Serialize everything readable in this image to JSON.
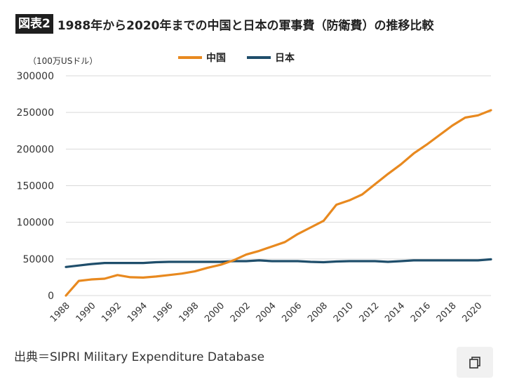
{
  "figure": {
    "label": "図表2",
    "title": "1988年から2020年までの中国と日本の軍事費（防衛費）の推移比較"
  },
  "source": "出典＝SIPRI Military Expenditure Database",
  "icons": {
    "copy": "copy-icon"
  },
  "chart_data": {
    "type": "line",
    "ylabel": "（100万USドル）",
    "ylim": [
      0,
      300000
    ],
    "yticks": [
      0,
      50000,
      100000,
      150000,
      200000,
      250000,
      300000
    ],
    "ytick_labels": [
      "0",
      "50000",
      "100000",
      "150000",
      "200000",
      "250000",
      "300000"
    ],
    "xlim": [
      1988,
      2021
    ],
    "xticks": [
      1988,
      1990,
      1992,
      1994,
      1996,
      1998,
      2000,
      2002,
      2004,
      2006,
      2008,
      2010,
      2012,
      2014,
      2016,
      2018,
      2020
    ],
    "xtick_labels": [
      "1988",
      "1990",
      "1992",
      "1994",
      "1996",
      "1998",
      "2000",
      "2002",
      "2004",
      "2006",
      "2008",
      "2010",
      "2012",
      "2014",
      "2016",
      "2018",
      "2020"
    ],
    "grid": true,
    "legend_position": "top-center",
    "x": [
      1988,
      1989,
      1990,
      1991,
      1992,
      1993,
      1994,
      1995,
      1996,
      1997,
      1998,
      1999,
      2000,
      2001,
      2002,
      2003,
      2004,
      2005,
      2006,
      2007,
      2008,
      2009,
      2010,
      2011,
      2012,
      2013,
      2014,
      2015,
      2016,
      2017,
      2018,
      2019,
      2020,
      2021
    ],
    "series": [
      {
        "name": "中国",
        "color": "#e8891f",
        "values": [
          0,
          20000,
          22000,
          23000,
          28000,
          25000,
          24500,
          26000,
          28000,
          30000,
          33000,
          38000,
          42000,
          48000,
          56000,
          61000,
          67000,
          73000,
          84000,
          93000,
          102000,
          124000,
          130000,
          138000,
          152000,
          166000,
          179000,
          194000,
          206000,
          219000,
          232000,
          243000,
          246000,
          253000
        ]
      },
      {
        "name": "日本",
        "color": "#1f4e6b",
        "values": [
          39000,
          41000,
          43000,
          44500,
          44500,
          44500,
          44500,
          45500,
          46000,
          46000,
          46000,
          46000,
          46000,
          47000,
          47000,
          48000,
          47000,
          47000,
          47000,
          46000,
          45500,
          46500,
          47000,
          47000,
          47000,
          46000,
          47000,
          48000,
          48000,
          48000,
          48000,
          48000,
          48000,
          49500
        ]
      }
    ]
  }
}
